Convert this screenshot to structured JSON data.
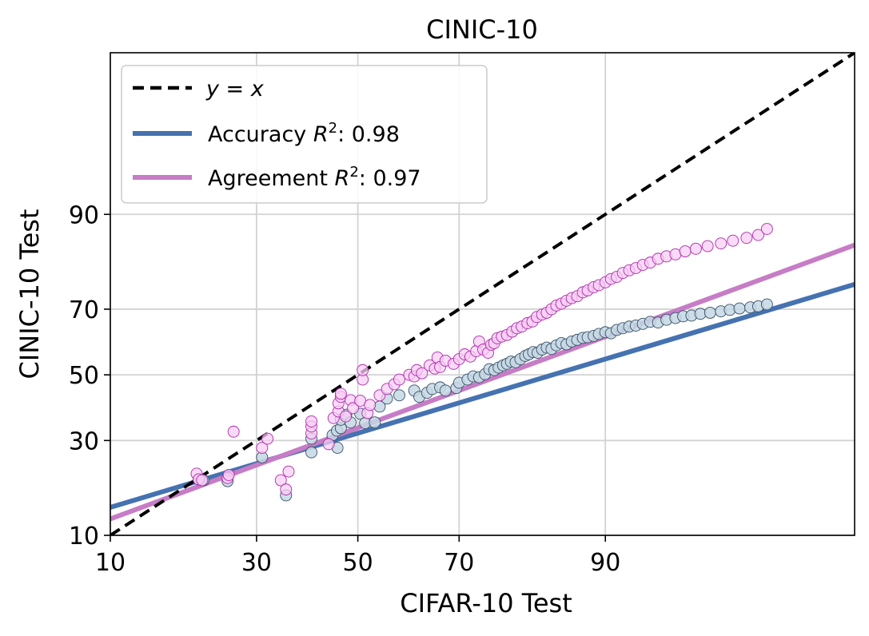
{
  "chart_data": {
    "type": "scatter",
    "title": "CINIC-10",
    "xlabel": "CIFAR-10 Test",
    "ylabel": "CINIC-10 Test",
    "xlim": [
      10,
      99.5
    ],
    "ylim": [
      10,
      99.5
    ],
    "x_ticks": [
      10,
      30,
      50,
      70,
      90
    ],
    "y_ticks": [
      10,
      30,
      50,
      70,
      90
    ],
    "scale": "probit",
    "grid": true,
    "legend_position": "top-left",
    "legend": {
      "identity": "y = x",
      "accuracy_prefix": "Accuracy ",
      "accuracy_value": ": 0.98",
      "agreement_prefix": "Agreement ",
      "agreement_value": ": 0.97",
      "r_symbol": "R",
      "r_exponent": "2"
    },
    "colors": {
      "identity": "#000000",
      "accuracy_line": "#4572b0",
      "accuracy_point_fill": "#c5d8e4",
      "accuracy_point_edge": "#3a5068",
      "agreement_line": "#c77cc6",
      "agreement_point_fill": "#f7cdf4",
      "agreement_point_edge": "#b02bab",
      "grid": "#d3d3d3"
    },
    "series": [
      {
        "name": "y = x",
        "kind": "line",
        "style": "dashed",
        "x": [
          10,
          99.5
        ],
        "y": [
          10,
          99.5
        ]
      },
      {
        "name": "Accuracy",
        "kind": "line",
        "x": [
          10,
          99.5
        ],
        "y": [
          14.5,
          76.5
        ]
      },
      {
        "name": "Agreement",
        "kind": "line",
        "x": [
          10,
          99.5
        ],
        "y": [
          12.5,
          85
        ]
      },
      {
        "name": "Accuracy points",
        "kind": "scatter",
        "points": [
          [
            20.5,
            20.2
          ],
          [
            21.2,
            20.0
          ],
          [
            25.0,
            19.8
          ],
          [
            31.0,
            25.5
          ],
          [
            35.5,
            16.8
          ],
          [
            40.5,
            26.8
          ],
          [
            40.5,
            30.5
          ],
          [
            44.8,
            31.5
          ],
          [
            45.7,
            32.8
          ],
          [
            45.8,
            28.0
          ],
          [
            46.5,
            33.5
          ],
          [
            46.5,
            36.0
          ],
          [
            47.6,
            37.5
          ],
          [
            48.5,
            35.2
          ],
          [
            50.5,
            37.8
          ],
          [
            51.5,
            35.0
          ],
          [
            53.5,
            35.2
          ],
          [
            54.5,
            40.0
          ],
          [
            56.0,
            42.5
          ],
          [
            58.5,
            43.5
          ],
          [
            61.5,
            45.0
          ],
          [
            62.5,
            43.0
          ],
          [
            64.0,
            44.3
          ],
          [
            65.0,
            45.5
          ],
          [
            66.5,
            46.0
          ],
          [
            67.5,
            45.0
          ],
          [
            69.5,
            45.8
          ],
          [
            70.0,
            47.5
          ],
          [
            71.5,
            48.5
          ],
          [
            72.5,
            49.5
          ],
          [
            73.5,
            49.2
          ],
          [
            74.5,
            50.2
          ],
          [
            75.2,
            51.8
          ],
          [
            76.0,
            51.5
          ],
          [
            76.7,
            52.3
          ],
          [
            77.4,
            53.0
          ],
          [
            78.0,
            53.5
          ],
          [
            78.6,
            54.2
          ],
          [
            79.3,
            54.0
          ],
          [
            80.0,
            55.0
          ],
          [
            80.7,
            56.0
          ],
          [
            81.2,
            56.5
          ],
          [
            81.8,
            57.2
          ],
          [
            82.4,
            57.0
          ],
          [
            83.0,
            58.0
          ],
          [
            83.6,
            58.6
          ],
          [
            84.2,
            58.2
          ],
          [
            84.8,
            59.3
          ],
          [
            85.4,
            60.0
          ],
          [
            86.0,
            59.6
          ],
          [
            86.6,
            60.5
          ],
          [
            87.2,
            61.0
          ],
          [
            87.8,
            61.6
          ],
          [
            88.3,
            61.8
          ],
          [
            88.9,
            62.2
          ],
          [
            89.4,
            62.8
          ],
          [
            90.0,
            63.3
          ],
          [
            90.5,
            63.0
          ],
          [
            91.0,
            64.0
          ],
          [
            91.5,
            64.5
          ],
          [
            92.0,
            65.0
          ],
          [
            92.5,
            65.3
          ],
          [
            93.0,
            65.8
          ],
          [
            93.5,
            66.4
          ],
          [
            94.0,
            66.2
          ],
          [
            94.5,
            67.0
          ],
          [
            95.0,
            67.5
          ],
          [
            95.4,
            68.0
          ],
          [
            95.8,
            68.2
          ],
          [
            96.2,
            68.7
          ],
          [
            96.6,
            69.0
          ],
          [
            97.0,
            69.4
          ],
          [
            97.3,
            69.8
          ],
          [
            97.6,
            70.2
          ],
          [
            97.9,
            70.5
          ],
          [
            98.1,
            70.8
          ],
          [
            98.3,
            71.3
          ]
        ]
      },
      {
        "name": "Agreement points",
        "kind": "scatter",
        "points": [
          [
            20.2,
            21.5
          ],
          [
            20.5,
            20.2
          ],
          [
            21.0,
            20.0
          ],
          [
            25.0,
            20.5
          ],
          [
            25.2,
            21.2
          ],
          [
            26.0,
            32.5
          ],
          [
            31.0,
            28.0
          ],
          [
            32.0,
            30.5
          ],
          [
            34.5,
            20.0
          ],
          [
            35.5,
            18.0
          ],
          [
            36.0,
            22.0
          ],
          [
            40.5,
            32.0
          ],
          [
            40.5,
            34.0
          ],
          [
            40.5,
            35.5
          ],
          [
            44.0,
            29.0
          ],
          [
            45.0,
            36.5
          ],
          [
            46.0,
            38.5
          ],
          [
            46.0,
            41.0
          ],
          [
            46.5,
            43.0
          ],
          [
            46.5,
            44.0
          ],
          [
            47.5,
            37.0
          ],
          [
            48.5,
            42.0
          ],
          [
            49.0,
            39.5
          ],
          [
            50.5,
            41.8
          ],
          [
            51.0,
            48.5
          ],
          [
            51.0,
            51.5
          ],
          [
            52.0,
            38.0
          ],
          [
            52.5,
            40.5
          ],
          [
            54.5,
            43.5
          ],
          [
            56.0,
            45.5
          ],
          [
            57.5,
            47.0
          ],
          [
            58.5,
            48.5
          ],
          [
            60.5,
            50.0
          ],
          [
            61.5,
            49.5
          ],
          [
            62.0,
            51.5
          ],
          [
            63.0,
            50.5
          ],
          [
            64.5,
            53.0
          ],
          [
            65.5,
            52.0
          ],
          [
            66.0,
            55.5
          ],
          [
            66.5,
            52.5
          ],
          [
            67.5,
            54.5
          ],
          [
            69.0,
            53.5
          ],
          [
            70.0,
            55.0
          ],
          [
            71.0,
            56.5
          ],
          [
            72.0,
            55.8
          ],
          [
            73.0,
            57.5
          ],
          [
            73.5,
            60.5
          ],
          [
            74.2,
            58.0
          ],
          [
            75.0,
            57.0
          ],
          [
            75.5,
            59.5
          ],
          [
            76.0,
            60.0
          ],
          [
            76.5,
            61.5
          ],
          [
            77.2,
            62.0
          ],
          [
            78.0,
            62.5
          ],
          [
            78.8,
            63.5
          ],
          [
            79.5,
            64.5
          ],
          [
            80.2,
            65.0
          ],
          [
            81.0,
            66.0
          ],
          [
            81.7,
            66.5
          ],
          [
            82.3,
            67.8
          ],
          [
            83.0,
            68.5
          ],
          [
            83.6,
            69.0
          ],
          [
            84.2,
            70.0
          ],
          [
            84.8,
            71.0
          ],
          [
            85.4,
            71.5
          ],
          [
            86.0,
            72.3
          ],
          [
            86.6,
            73.0
          ],
          [
            87.2,
            73.5
          ],
          [
            87.8,
            74.5
          ],
          [
            88.3,
            75.0
          ],
          [
            88.9,
            75.8
          ],
          [
            89.4,
            76.3
          ],
          [
            90.0,
            77.0
          ],
          [
            90.5,
            77.8
          ],
          [
            91.0,
            78.3
          ],
          [
            91.5,
            79.2
          ],
          [
            92.0,
            79.8
          ],
          [
            92.5,
            80.3
          ],
          [
            93.0,
            81.0
          ],
          [
            93.5,
            81.5
          ],
          [
            94.0,
            82.3
          ],
          [
            94.5,
            82.8
          ],
          [
            95.0,
            83.2
          ],
          [
            95.5,
            83.8
          ],
          [
            96.0,
            84.3
          ],
          [
            96.5,
            84.8
          ],
          [
            97.0,
            85.3
          ],
          [
            97.4,
            85.8
          ],
          [
            97.8,
            86.3
          ],
          [
            98.1,
            86.8
          ],
          [
            98.3,
            87.8
          ]
        ]
      }
    ]
  }
}
